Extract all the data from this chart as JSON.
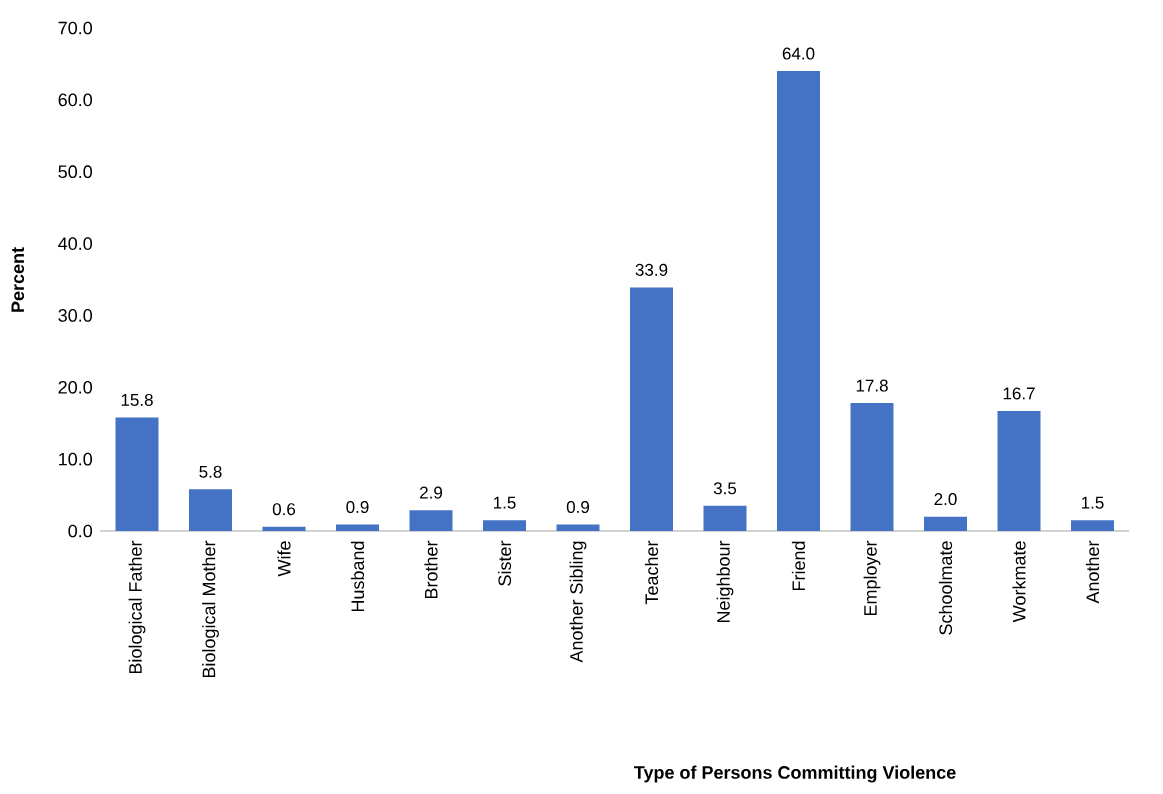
{
  "chart_data": {
    "type": "bar",
    "xlabel": "Type of Persons Committing Violence",
    "ylabel": "Percent",
    "categories": [
      "Biological Father",
      "Biological Mother",
      "Wife",
      "Husband",
      "Brother",
      "Sister",
      "Another Sibling",
      "Teacher",
      "Neighbour",
      "Friend",
      "Employer",
      "Schoolmate",
      "Workmate",
      "Another"
    ],
    "values": [
      15.8,
      5.8,
      0.6,
      0.9,
      2.9,
      1.5,
      0.9,
      33.9,
      3.5,
      64.0,
      17.8,
      2.0,
      16.7,
      1.5
    ],
    "color": "#4472c4",
    "ylim": [
      0,
      70
    ],
    "yticks": [
      {
        "value": 0,
        "label": "0.0"
      },
      {
        "value": 10,
        "label": "10.0"
      },
      {
        "value": 20,
        "label": "20.0"
      },
      {
        "value": 30,
        "label": "30.0"
      },
      {
        "value": 40,
        "label": "40.0"
      },
      {
        "value": 50,
        "label": "50.0"
      },
      {
        "value": 60,
        "label": "60.0"
      },
      {
        "value": 70,
        "label": "70.0"
      }
    ],
    "value_labels": [
      "15.8",
      "5.8",
      "0.6",
      "0.9",
      "2.9",
      "1.5",
      "0.9",
      "33.9",
      "3.5",
      "64.0",
      "17.8",
      "2.0",
      "16.7",
      "1.5"
    ],
    "grid": false
  }
}
